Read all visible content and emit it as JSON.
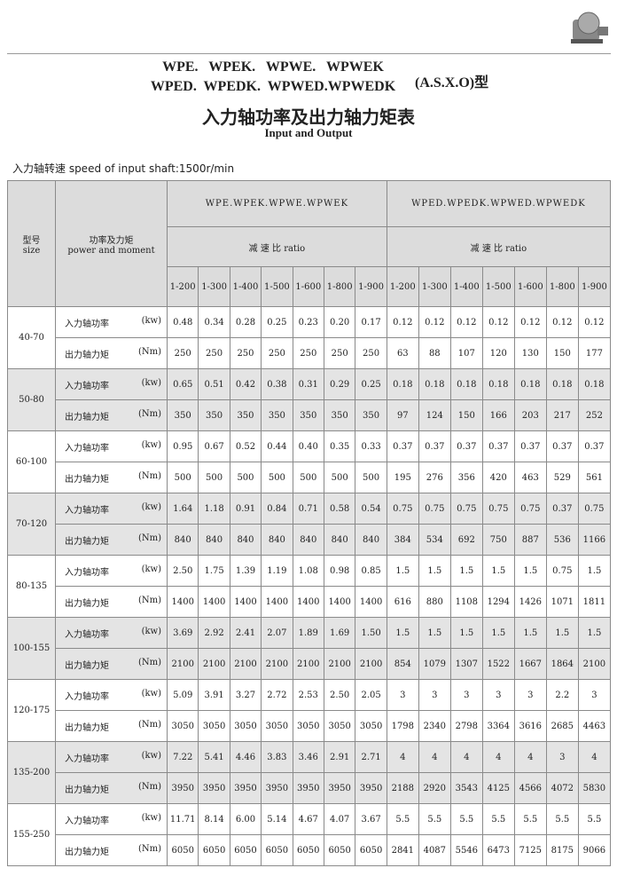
{
  "header": {
    "title_line1": "WPE.   WPEK.   WPWE.   WPWEK",
    "title_line2": "WPED.  WPEDK.  WPWED.WPWEDK",
    "title_suffix": "(A.S.X.O)型",
    "title_cn": "入力轴功率及出力轴力矩表",
    "title_en": "Input and Output"
  },
  "subheading": "入力轴转速 speed of input shaft:1500r/min",
  "table": {
    "size_header_cn": "型号",
    "size_header_en": "size",
    "pm_header_cn": "功率及力矩",
    "pm_header_en": "power and moment",
    "series": [
      {
        "name": "WPE.WPEK.WPWE.WPWEK",
        "ratio_label": "减 速 比 ratio",
        "ratios": [
          "1-200",
          "1-300",
          "1-400",
          "1-500",
          "1-600",
          "1-800",
          "1-900"
        ]
      },
      {
        "name": "WPED.WPEDK.WPWED.WPWEDK",
        "ratio_label": "减 速 比 ratio",
        "ratios": [
          "1-200",
          "1-300",
          "1-400",
          "1-500",
          "1-600",
          "1-800",
          "1-900"
        ]
      }
    ],
    "groups": [
      {
        "size": "40-70",
        "rows": [
          {
            "label": "入力轴功率",
            "unit": "(kw)",
            "values": [
              "0.48",
              "0.34",
              "0.28",
              "0.25",
              "0.23",
              "0.20",
              "0.17",
              "0.12",
              "0.12",
              "0.12",
              "0.12",
              "0.12",
              "0.12",
              "0.12"
            ]
          },
          {
            "label": "出力轴力矩",
            "unit": "(Nm)",
            "values": [
              "250",
              "250",
              "250",
              "250",
              "250",
              "250",
              "250",
              "63",
              "88",
              "107",
              "120",
              "130",
              "150",
              "177"
            ]
          }
        ]
      },
      {
        "size": "50-80",
        "rows": [
          {
            "label": "入力轴功率",
            "unit": "(kw)",
            "values": [
              "0.65",
              "0.51",
              "0.42",
              "0.38",
              "0.31",
              "0.29",
              "0.25",
              "0.18",
              "0.18",
              "0.18",
              "0.18",
              "0.18",
              "0.18",
              "0.18"
            ]
          },
          {
            "label": "出力轴力矩",
            "unit": "(Nm)",
            "values": [
              "350",
              "350",
              "350",
              "350",
              "350",
              "350",
              "350",
              "97",
              "124",
              "150",
              "166",
              "203",
              "217",
              "252"
            ]
          }
        ]
      },
      {
        "size": "60-100",
        "rows": [
          {
            "label": "入力轴功率",
            "unit": "(kw)",
            "values": [
              "0.95",
              "0.67",
              "0.52",
              "0.44",
              "0.40",
              "0.35",
              "0.33",
              "0.37",
              "0.37",
              "0.37",
              "0.37",
              "0.37",
              "0.37",
              "0.37"
            ]
          },
          {
            "label": "出力轴力矩",
            "unit": "(Nm)",
            "values": [
              "500",
              "500",
              "500",
              "500",
              "500",
              "500",
              "500",
              "195",
              "276",
              "356",
              "420",
              "463",
              "529",
              "561"
            ]
          }
        ]
      },
      {
        "size": "70-120",
        "rows": [
          {
            "label": "入力轴功率",
            "unit": "(kw)",
            "values": [
              "1.64",
              "1.18",
              "0.91",
              "0.84",
              "0.71",
              "0.58",
              "0.54",
              "0.75",
              "0.75",
              "0.75",
              "0.75",
              "0.75",
              "0.37",
              "0.75"
            ]
          },
          {
            "label": "出力轴力矩",
            "unit": "(Nm)",
            "values": [
              "840",
              "840",
              "840",
              "840",
              "840",
              "840",
              "840",
              "384",
              "534",
              "692",
              "750",
              "887",
              "536",
              "1166"
            ]
          }
        ]
      },
      {
        "size": "80-135",
        "rows": [
          {
            "label": "入力轴功率",
            "unit": "(kw)",
            "values": [
              "2.50",
              "1.75",
              "1.39",
              "1.19",
              "1.08",
              "0.98",
              "0.85",
              "1.5",
              "1.5",
              "1.5",
              "1.5",
              "1.5",
              "0.75",
              "1.5"
            ]
          },
          {
            "label": "出力轴力矩",
            "unit": "(Nm)",
            "values": [
              "1400",
              "1400",
              "1400",
              "1400",
              "1400",
              "1400",
              "1400",
              "616",
              "880",
              "1108",
              "1294",
              "1426",
              "1071",
              "1811"
            ]
          }
        ]
      },
      {
        "size": "100-155",
        "rows": [
          {
            "label": "入力轴功率",
            "unit": "(kw)",
            "values": [
              "3.69",
              "2.92",
              "2.41",
              "2.07",
              "1.89",
              "1.69",
              "1.50",
              "1.5",
              "1.5",
              "1.5",
              "1.5",
              "1.5",
              "1.5",
              "1.5"
            ]
          },
          {
            "label": "出力轴力矩",
            "unit": "(Nm)",
            "values": [
              "2100",
              "2100",
              "2100",
              "2100",
              "2100",
              "2100",
              "2100",
              "854",
              "1079",
              "1307",
              "1522",
              "1667",
              "1864",
              "2100"
            ]
          }
        ]
      },
      {
        "size": "120-175",
        "rows": [
          {
            "label": "入力轴功率",
            "unit": "(kw)",
            "values": [
              "5.09",
              "3.91",
              "3.27",
              "2.72",
              "2.53",
              "2.50",
              "2.05",
              "3",
              "3",
              "3",
              "3",
              "3",
              "2.2",
              "3"
            ]
          },
          {
            "label": "出力轴力矩",
            "unit": "(Nm)",
            "values": [
              "3050",
              "3050",
              "3050",
              "3050",
              "3050",
              "3050",
              "3050",
              "1798",
              "2340",
              "2798",
              "3364",
              "3616",
              "2685",
              "4463"
            ]
          }
        ]
      },
      {
        "size": "135-200",
        "rows": [
          {
            "label": "入力轴功率",
            "unit": "(kw)",
            "values": [
              "7.22",
              "5.41",
              "4.46",
              "3.83",
              "3.46",
              "2.91",
              "2.71",
              "4",
              "4",
              "4",
              "4",
              "4",
              "3",
              "4"
            ]
          },
          {
            "label": "出力轴力矩",
            "unit": "(Nm)",
            "values": [
              "3950",
              "3950",
              "3950",
              "3950",
              "3950",
              "3950",
              "3950",
              "2188",
              "2920",
              "3543",
              "4125",
              "4566",
              "4072",
              "5830"
            ]
          }
        ]
      },
      {
        "size": "155-250",
        "rows": [
          {
            "label": "入力轴功率",
            "unit": "(kw)",
            "values": [
              "11.71",
              "8.14",
              "6.00",
              "5.14",
              "4.67",
              "4.07",
              "3.67",
              "5.5",
              "5.5",
              "5.5",
              "5.5",
              "5.5",
              "5.5",
              "5.5"
            ]
          },
          {
            "label": "出力轴力矩",
            "unit": "(Nm)",
            "values": [
              "6050",
              "6050",
              "6050",
              "6050",
              "6050",
              "6050",
              "6050",
              "2841",
              "4087",
              "5546",
              "6473",
              "7125",
              "8175",
              "9066"
            ]
          }
        ]
      }
    ]
  }
}
